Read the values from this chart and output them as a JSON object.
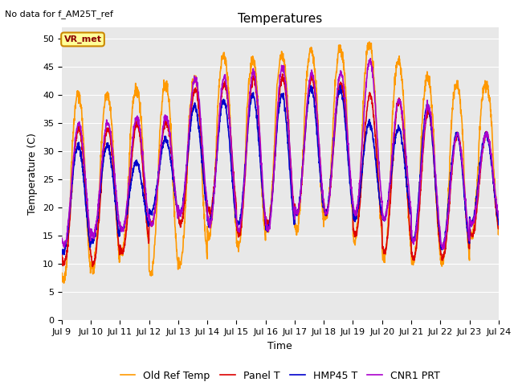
{
  "title": "Temperatures",
  "xlabel": "Time",
  "ylabel": "Temperature (C)",
  "top_left_text": "No data for f_AM25T_ref",
  "legend_label_text": "VR_met",
  "ylim": [
    0,
    52
  ],
  "yticks": [
    0,
    5,
    10,
    15,
    20,
    25,
    30,
    35,
    40,
    45,
    50
  ],
  "xtick_labels": [
    "Jul 9",
    "Jul 10",
    "Jul 11",
    "Jul 12",
    "Jul 13",
    "Jul 14",
    "Jul 15",
    "Jul 16",
    "Jul 17",
    "Jul 18",
    "Jul 19",
    "Jul 20",
    "Jul 21",
    "Jul 22",
    "Jul 23",
    "Jul 24"
  ],
  "series": {
    "panel_t": {
      "label": "Panel T",
      "color": "#dd0000",
      "lw": 1.2
    },
    "old_ref": {
      "label": "Old Ref Temp",
      "color": "#ff9900",
      "lw": 1.2
    },
    "hmp45": {
      "label": "HMP45 T",
      "color": "#0000cc",
      "lw": 1.2
    },
    "cnr1": {
      "label": "CNR1 PRT",
      "color": "#aa00cc",
      "lw": 1.2
    }
  },
  "bg_color": "#e8e8e8",
  "fig_bg": "#ffffff",
  "title_fontsize": 11,
  "axis_label_fontsize": 9,
  "tick_fontsize": 8,
  "legend_fontsize": 9
}
